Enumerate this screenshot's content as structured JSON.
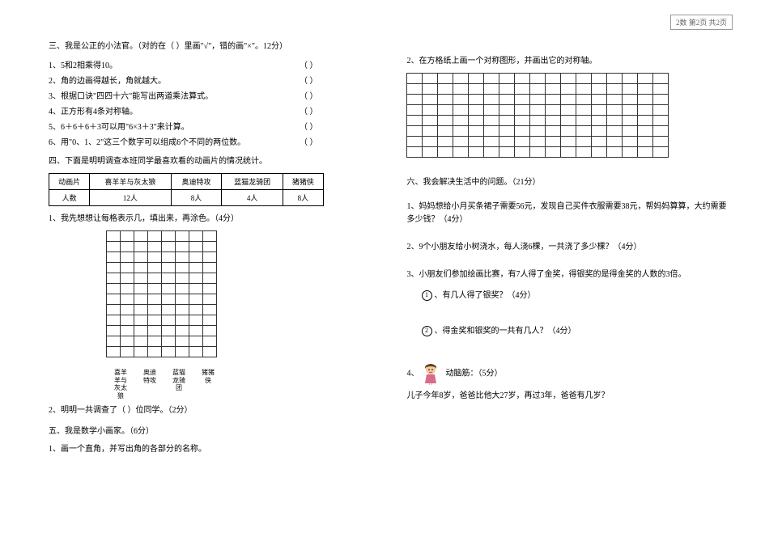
{
  "header_stamp": "2数 第2页 共2页",
  "left": {
    "s3_title": "三、我是公正的小法官。（对的在（  ）里画\"√\"，错的画\"×\"。12分）",
    "tf": [
      "1、5和2相乘得10。",
      "2、角的边画得越长，角就越大。",
      "3、根据口诀\"四四十六\"能写出两道乘法算式。",
      "4、正方形有4条对称轴。",
      "5、6＋6＋6＋3可以用\"6×3＋3\"来计算。",
      "6、用\"0、1、2\"这三个数字可以组成6个不同的两位数。"
    ],
    "tf_paren": "（     ）",
    "s4_title": "四、下面是明明调查本班同学最喜欢看的动画片的情况统计。",
    "table": {
      "headers": [
        "动画片",
        "喜羊羊与灰太狼",
        "奥迪特攻",
        "蓝猫龙骑团",
        "猪猪侠"
      ],
      "row_label": "人数",
      "cells": [
        "12人",
        "8人",
        "4人",
        "8人"
      ]
    },
    "q1": "1、我先想想让每格表示几，填出来，再涂色。（4分）",
    "chart": {
      "cols": 8,
      "rows": 12,
      "x_labels": [
        "喜羊羊与灰太狼",
        "奥迪特攻",
        "蓝猫龙骑团",
        "猪猪侠"
      ]
    },
    "q2": "2、明明一共调查了（      ）位同学。（2分）",
    "s5_title": "五、我是数学小画家。（6分）",
    "s5_q1": "1、画一个直角，并写出角的各部分的名称。"
  },
  "right": {
    "q2": "2、在方格纸上画一个对称图形，并画出它的对称轴。",
    "grid": {
      "cols": 17,
      "rows": 8
    },
    "s6_title": "六、我会解决生活中的问题。（21分）",
    "p1": "1、妈妈想给小月买条裙子需要56元，发现自己买件衣服需要38元，帮妈妈算算，大约需要多少钱？（4分）",
    "p2": "2、9个小朋友给小树浇水，每人浇6棵，一共浇了多少棵？（4分）",
    "p3_intro": "3、小朋友们参加绘画比赛，有7人得了金奖，得银奖的是得金奖的人数的3倍。",
    "p3_a_num": "1",
    "p3_a": "、有几人得了银奖？（4分）",
    "p3_b_num": "2",
    "p3_b": "、得金奖和银奖的一共有几人？（4分）",
    "p4_label": "4、",
    "p4_title": "动脑筋：（5分）",
    "p4_text": "儿子今年8岁，爸爸比他大27岁，再过3年，爸爸有几岁？"
  },
  "colors": {
    "text": "#000000",
    "bg": "#ffffff",
    "grid_border": "#333333"
  }
}
